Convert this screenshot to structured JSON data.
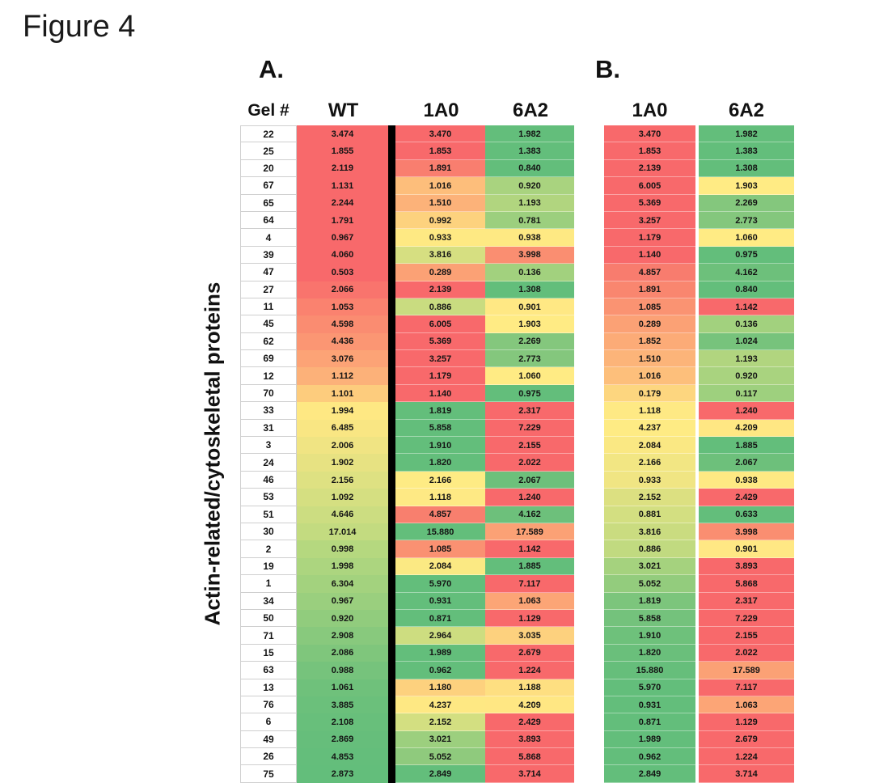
{
  "chart_data": {
    "type": "heatmap",
    "title": "Figure 4",
    "ylabel": "Actin-related/cytoskeletal proteins",
    "legend": "none",
    "grid": "off",
    "color_scale": {
      "style": "3-color red-yellow-green",
      "red": "#F8696B",
      "yellow": "#FFEB84",
      "green": "#63BE7B"
    },
    "divider": {
      "panel": "A",
      "between": [
        "WT",
        "1A0"
      ],
      "color": "#000000"
    },
    "panels": [
      {
        "label": "A.",
        "columns": [
          "Gel #",
          "WT",
          "1A0",
          "6A2"
        ],
        "rows": [
          {
            "gel": "22",
            "values": [
              3.474,
              3.47,
              1.982
            ],
            "colors": [
              "#F8696B",
              "#F8696B",
              "#63BE7B"
            ]
          },
          {
            "gel": "25",
            "values": [
              1.855,
              1.853,
              1.383
            ],
            "colors": [
              "#F8696B",
              "#F8696B",
              "#63BE7B"
            ]
          },
          {
            "gel": "20",
            "values": [
              2.119,
              1.891,
              0.84
            ],
            "colors": [
              "#F8696B",
              "#F97E6F",
              "#63BE7B"
            ]
          },
          {
            "gel": "67",
            "values": [
              1.131,
              1.016,
              0.92
            ],
            "colors": [
              "#F8696B",
              "#FDBE7B",
              "#A9D37F"
            ]
          },
          {
            "gel": "65",
            "values": [
              2.244,
              1.51,
              1.193
            ],
            "colors": [
              "#F8696B",
              "#FCB279",
              "#B1D57F"
            ]
          },
          {
            "gel": "64",
            "values": [
              1.791,
              0.992,
              0.781
            ],
            "colors": [
              "#F8696B",
              "#FDD27E",
              "#9CCF7E"
            ]
          },
          {
            "gel": "4",
            "values": [
              0.967,
              0.933,
              0.938
            ],
            "colors": [
              "#F8696B",
              "#FEE983",
              "#FEE983"
            ]
          },
          {
            "gel": "39",
            "values": [
              4.06,
              3.816,
              3.998
            ],
            "colors": [
              "#F8696B",
              "#D6DF81",
              "#FA8E71"
            ]
          },
          {
            "gel": "47",
            "values": [
              0.503,
              0.289,
              0.136
            ],
            "colors": [
              "#F8696B",
              "#FBA175",
              "#A2D17E"
            ]
          },
          {
            "gel": "27",
            "values": [
              2.066,
              2.139,
              1.308
            ],
            "colors": [
              "#F9746D",
              "#F8696B",
              "#63BE7B"
            ]
          },
          {
            "gel": "11",
            "values": [
              1.053,
              0.886,
              0.901
            ],
            "colors": [
              "#FA826F",
              "#C9DC80",
              "#FFE884"
            ]
          },
          {
            "gel": "45",
            "values": [
              4.598,
              6.005,
              1.903
            ],
            "colors": [
              "#FA8C71",
              "#F8696B",
              "#FFEB84"
            ]
          },
          {
            "gel": "62",
            "values": [
              4.436,
              5.369,
              2.269
            ],
            "colors": [
              "#FB9673",
              "#F8696B",
              "#84C77D"
            ]
          },
          {
            "gel": "69",
            "values": [
              3.076,
              3.257,
              2.773
            ],
            "colors": [
              "#FCA376",
              "#F8696B",
              "#84C77D"
            ]
          },
          {
            "gel": "12",
            "values": [
              1.112,
              1.179,
              1.06
            ],
            "colors": [
              "#FCB179",
              "#F8696B",
              "#FFEB84"
            ]
          },
          {
            "gel": "70",
            "values": [
              1.101,
              1.14,
              0.975
            ],
            "colors": [
              "#FDCC7D",
              "#F8696B",
              "#63BE7B"
            ]
          },
          {
            "gel": "33",
            "values": [
              1.994,
              1.819,
              2.317
            ],
            "colors": [
              "#FEE883",
              "#63BE7B",
              "#F8696B"
            ]
          },
          {
            "gel": "31",
            "values": [
              6.485,
              5.858,
              7.229
            ],
            "colors": [
              "#F9E683",
              "#63BE7B",
              "#F8696B"
            ]
          },
          {
            "gel": "3",
            "values": [
              2.006,
              1.91,
              2.155
            ],
            "colors": [
              "#F0E483",
              "#63BE7B",
              "#F8696B"
            ]
          },
          {
            "gel": "24",
            "values": [
              1.902,
              1.82,
              2.022
            ],
            "colors": [
              "#E7E282",
              "#63BE7B",
              "#F8696B"
            ]
          },
          {
            "gel": "46",
            "values": [
              2.156,
              2.166,
              2.067
            ],
            "colors": [
              "#DEE182",
              "#FEEB84",
              "#6DC07B"
            ]
          },
          {
            "gel": "53",
            "values": [
              1.092,
              1.118,
              1.24
            ],
            "colors": [
              "#D5DF81",
              "#FEE984",
              "#F8696B"
            ]
          },
          {
            "gel": "51",
            "values": [
              4.646,
              4.857,
              4.162
            ],
            "colors": [
              "#CCDD81",
              "#F87F6E",
              "#6DC07B"
            ]
          },
          {
            "gel": "30",
            "values": [
              17.014,
              15.88,
              17.589
            ],
            "colors": [
              "#C3DB80",
              "#63BE7B",
              "#FBA175"
            ]
          },
          {
            "gel": "2",
            "values": [
              0.998,
              1.085,
              1.142
            ],
            "colors": [
              "#B5D87F",
              "#FA9172",
              "#F8696B"
            ]
          },
          {
            "gel": "19",
            "values": [
              1.998,
              2.084,
              1.885
            ],
            "colors": [
              "#ACD57F",
              "#FBE983",
              "#63BE7B"
            ]
          },
          {
            "gel": "1",
            "values": [
              6.304,
              5.97,
              7.117
            ],
            "colors": [
              "#A3D27E",
              "#63BE7B",
              "#F8696B"
            ]
          },
          {
            "gel": "34",
            "values": [
              0.967,
              0.931,
              1.063
            ],
            "colors": [
              "#9ACF7E",
              "#63BE7B",
              "#FCA576"
            ]
          },
          {
            "gel": "50",
            "values": [
              0.92,
              0.871,
              1.129
            ],
            "colors": [
              "#91CC7D",
              "#63BE7B",
              "#F8696B"
            ]
          },
          {
            "gel": "71",
            "values": [
              2.908,
              2.964,
              3.035
            ],
            "colors": [
              "#88C97D",
              "#CDDD80",
              "#FDD17E"
            ]
          },
          {
            "gel": "15",
            "values": [
              2.086,
              1.989,
              2.679
            ],
            "colors": [
              "#7FC67C",
              "#63BE7B",
              "#F8696B"
            ]
          },
          {
            "gel": "63",
            "values": [
              0.988,
              0.962,
              1.224
            ],
            "colors": [
              "#76C37C",
              "#63BE7B",
              "#F8696B"
            ]
          },
          {
            "gel": "13",
            "values": [
              1.061,
              1.18,
              1.188
            ],
            "colors": [
              "#6FC17B",
              "#FDD17E",
              "#FEDF81"
            ]
          },
          {
            "gel": "76",
            "values": [
              3.885,
              4.237,
              4.209
            ],
            "colors": [
              "#6BC07B",
              "#FEE883",
              "#FFE783"
            ]
          },
          {
            "gel": "6",
            "values": [
              2.108,
              2.152,
              2.429
            ],
            "colors": [
              "#68BF7B",
              "#D3DF81",
              "#F8696B"
            ]
          },
          {
            "gel": "49",
            "values": [
              2.869,
              3.021,
              3.893
            ],
            "colors": [
              "#66BE7B",
              "#9CCF7E",
              "#F8696B"
            ]
          },
          {
            "gel": "26",
            "values": [
              4.853,
              5.052,
              5.868
            ],
            "colors": [
              "#64BE7B",
              "#8FCA7D",
              "#F8696B"
            ]
          },
          {
            "gel": "75",
            "values": [
              2.873,
              2.849,
              3.714
            ],
            "colors": [
              "#63BE7B",
              "#63BE7B",
              "#F8696B"
            ]
          }
        ]
      },
      {
        "label": "B.",
        "columns": [
          "1A0",
          "6A2"
        ],
        "rows": [
          {
            "values": [
              3.47,
              1.982
            ],
            "colors": [
              "#F8696B",
              "#63BE7B"
            ]
          },
          {
            "values": [
              1.853,
              1.383
            ],
            "colors": [
              "#F8696B",
              "#63BE7B"
            ]
          },
          {
            "values": [
              2.139,
              1.308
            ],
            "colors": [
              "#F8696B",
              "#63BE7B"
            ]
          },
          {
            "values": [
              6.005,
              1.903
            ],
            "colors": [
              "#F8696B",
              "#FFEB84"
            ]
          },
          {
            "values": [
              5.369,
              2.269
            ],
            "colors": [
              "#F8696B",
              "#84C77D"
            ]
          },
          {
            "values": [
              3.257,
              2.773
            ],
            "colors": [
              "#F8696B",
              "#84C77D"
            ]
          },
          {
            "values": [
              1.179,
              1.06
            ],
            "colors": [
              "#F8696B",
              "#FFEB84"
            ]
          },
          {
            "values": [
              1.14,
              0.975
            ],
            "colors": [
              "#F8696B",
              "#63BE7B"
            ]
          },
          {
            "values": [
              4.857,
              4.162
            ],
            "colors": [
              "#F87C6E",
              "#6DC07B"
            ]
          },
          {
            "values": [
              1.891,
              0.84
            ],
            "colors": [
              "#F9866F",
              "#63BE7B"
            ]
          },
          {
            "values": [
              1.085,
              1.142
            ],
            "colors": [
              "#FA9372",
              "#F8696B"
            ]
          },
          {
            "values": [
              0.289,
              0.136
            ],
            "colors": [
              "#FBA175",
              "#A2D17E"
            ]
          },
          {
            "values": [
              1.852,
              1.024
            ],
            "colors": [
              "#FCAB77",
              "#77C37C"
            ]
          },
          {
            "values": [
              1.51,
              1.193
            ],
            "colors": [
              "#FCB479",
              "#B1D57F"
            ]
          },
          {
            "values": [
              1.016,
              0.92
            ],
            "colors": [
              "#FDBF7B",
              "#A9D37F"
            ]
          },
          {
            "values": [
              0.179,
              0.117
            ],
            "colors": [
              "#FDD67F",
              "#9ED07E"
            ]
          },
          {
            "values": [
              1.118,
              1.24
            ],
            "colors": [
              "#FEE984",
              "#F8696B"
            ]
          },
          {
            "values": [
              4.237,
              4.209
            ],
            "colors": [
              "#FEEB84",
              "#FFE783"
            ]
          },
          {
            "values": [
              2.084,
              1.885
            ],
            "colors": [
              "#FAE883",
              "#63BE7B"
            ]
          },
          {
            "values": [
              2.166,
              2.067
            ],
            "colors": [
              "#F2E683",
              "#6DC07B"
            ]
          },
          {
            "values": [
              0.933,
              0.938
            ],
            "colors": [
              "#F0E583",
              "#FEE983"
            ]
          },
          {
            "values": [
              2.152,
              2.429
            ],
            "colors": [
              "#DCE081",
              "#F8696B"
            ]
          },
          {
            "values": [
              0.881,
              0.633
            ],
            "colors": [
              "#D3DF81",
              "#63BE7B"
            ]
          },
          {
            "values": [
              3.816,
              3.998
            ],
            "colors": [
              "#CADC80",
              "#FA8E71"
            ]
          },
          {
            "values": [
              0.886,
              0.901
            ],
            "colors": [
              "#C1DA80",
              "#FFE884"
            ]
          },
          {
            "values": [
              3.021,
              3.893
            ],
            "colors": [
              "#A5D27E",
              "#F8696B"
            ]
          },
          {
            "values": [
              5.052,
              5.868
            ],
            "colors": [
              "#93CC7D",
              "#F8696B"
            ]
          },
          {
            "values": [
              1.819,
              2.317
            ],
            "colors": [
              "#7CC57C",
              "#F8696B"
            ]
          },
          {
            "values": [
              5.858,
              7.229
            ],
            "colors": [
              "#74C27C",
              "#F8696B"
            ]
          },
          {
            "values": [
              1.91,
              2.155
            ],
            "colors": [
              "#6EC17B",
              "#F8696B"
            ]
          },
          {
            "values": [
              1.82,
              2.022
            ],
            "colors": [
              "#6ABF7B",
              "#F8696B"
            ]
          },
          {
            "values": [
              15.88,
              17.589
            ],
            "colors": [
              "#66BE7B",
              "#FBA175"
            ]
          },
          {
            "values": [
              5.97,
              7.117
            ],
            "colors": [
              "#63BE7B",
              "#F8696B"
            ]
          },
          {
            "values": [
              0.931,
              1.063
            ],
            "colors": [
              "#63BE7B",
              "#FCA576"
            ]
          },
          {
            "values": [
              0.871,
              1.129
            ],
            "colors": [
              "#63BE7B",
              "#F8696B"
            ]
          },
          {
            "values": [
              1.989,
              2.679
            ],
            "colors": [
              "#63BE7B",
              "#F8696B"
            ]
          },
          {
            "values": [
              0.962,
              1.224
            ],
            "colors": [
              "#63BE7B",
              "#F8696B"
            ]
          },
          {
            "values": [
              2.849,
              3.714
            ],
            "colors": [
              "#63BE7B",
              "#F8696B"
            ]
          }
        ]
      }
    ]
  }
}
